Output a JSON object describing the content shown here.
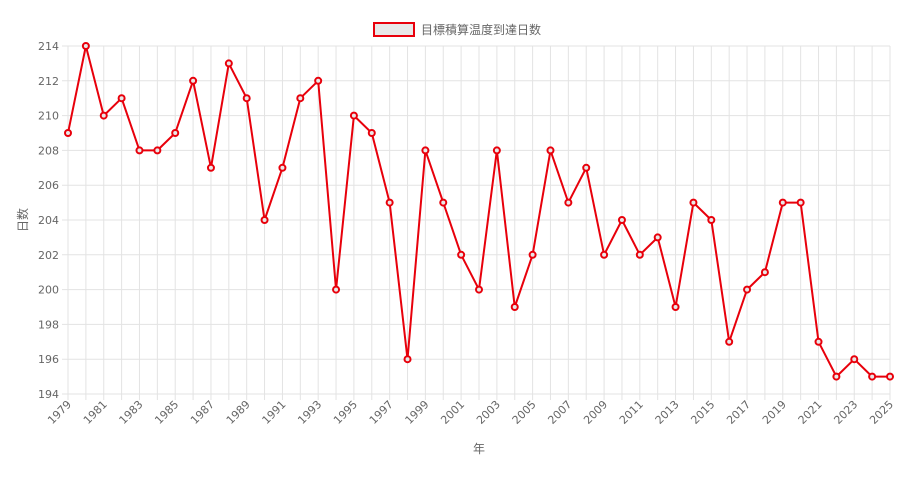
{
  "chart_data": {
    "type": "line",
    "xlabel": "年",
    "ylabel": "日数",
    "ylim": [
      194,
      214
    ],
    "yticks": [
      194,
      196,
      198,
      200,
      202,
      204,
      206,
      208,
      210,
      212,
      214
    ],
    "grid": true,
    "legend_position": "top",
    "x": [
      1979,
      1980,
      1981,
      1982,
      1983,
      1984,
      1985,
      1986,
      1987,
      1988,
      1989,
      1990,
      1991,
      1992,
      1993,
      1994,
      1995,
      1996,
      1997,
      1998,
      1999,
      2000,
      2001,
      2002,
      2003,
      2004,
      2005,
      2006,
      2007,
      2008,
      2009,
      2010,
      2011,
      2012,
      2013,
      2014,
      2015,
      2016,
      2017,
      2018,
      2019,
      2020,
      2021,
      2022,
      2023,
      2024,
      2025
    ],
    "xtick_labels": [
      "1979",
      "1981",
      "1983",
      "1985",
      "1987",
      "1989",
      "1991",
      "1993",
      "1995",
      "1997",
      "1999",
      "2001",
      "2003",
      "2005",
      "2007",
      "2009",
      "2011",
      "2013",
      "2015",
      "2017",
      "2019",
      "2021",
      "2023",
      "2025"
    ],
    "series": [
      {
        "name": "目標積算温度到達日数",
        "color": "#e8000b",
        "fill": "#e8e8e8",
        "values": [
          209,
          214,
          210,
          211,
          208,
          208,
          209,
          212,
          207,
          213,
          211,
          204,
          207,
          211,
          212,
          200,
          210,
          209,
          205,
          196,
          208,
          205,
          202,
          200,
          208,
          199,
          202,
          208,
          205,
          207,
          202,
          204,
          202,
          203,
          199,
          205,
          204,
          197,
          200,
          201,
          205,
          205,
          197,
          195,
          196,
          195,
          195
        ]
      }
    ]
  }
}
